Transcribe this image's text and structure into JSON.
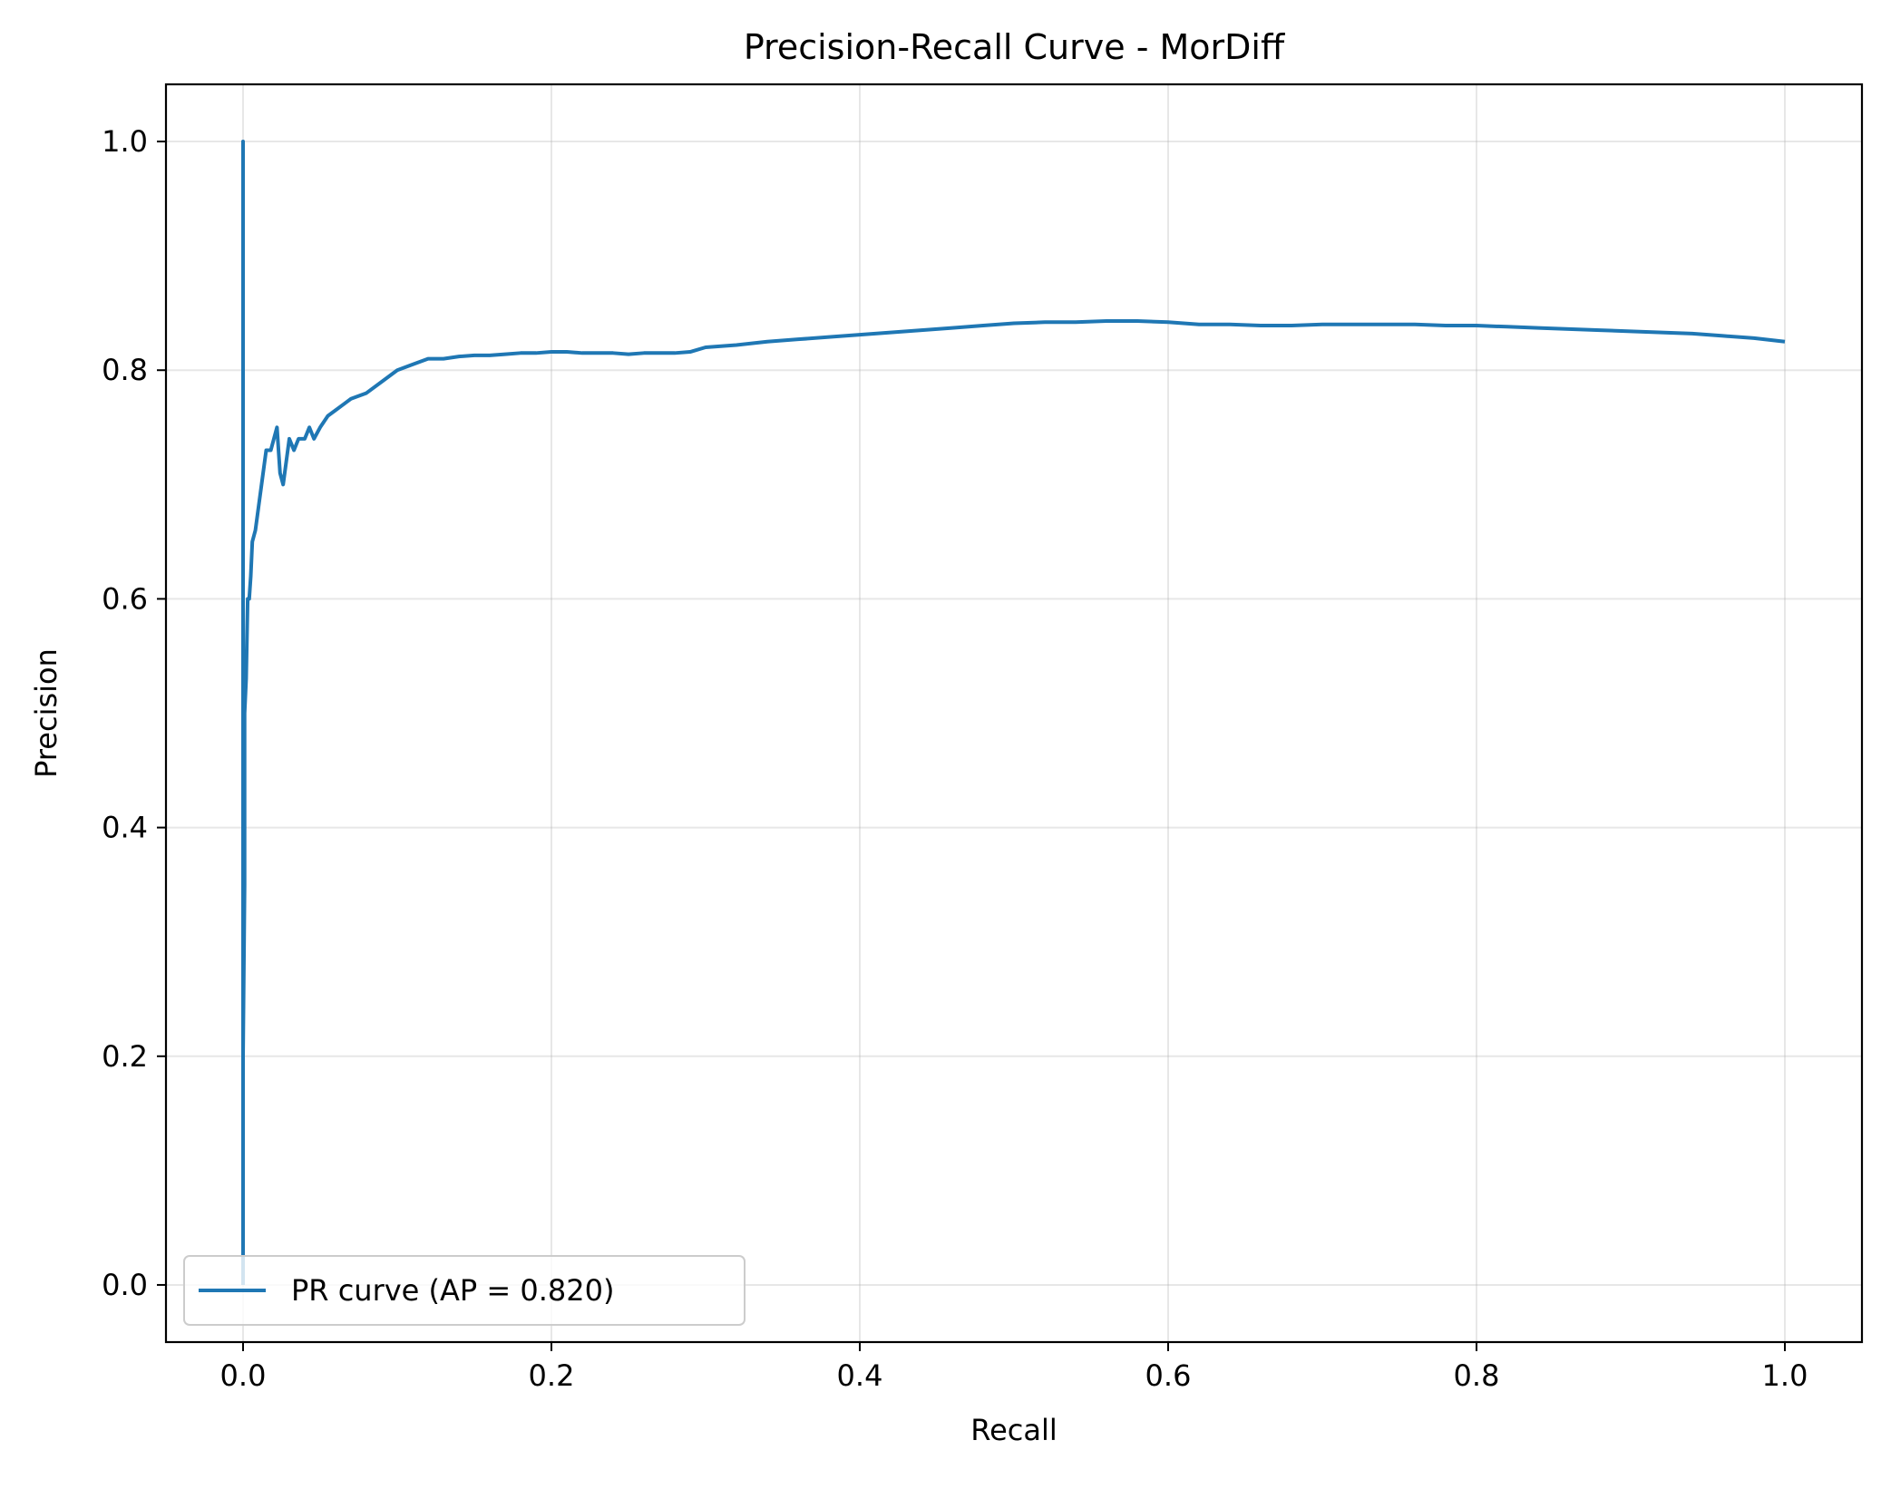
{
  "chart_data": {
    "type": "line",
    "title": "Precision-Recall Curve - MorDiff",
    "xlabel": "Recall",
    "ylabel": "Precision",
    "xlim": [
      -0.05,
      1.05
    ],
    "ylim": [
      -0.05,
      1.05
    ],
    "xticks": [
      0.0,
      0.2,
      0.4,
      0.6,
      0.8,
      1.0
    ],
    "xtick_labels": [
      "0.0",
      "0.2",
      "0.4",
      "0.6",
      "0.8",
      "1.0"
    ],
    "yticks": [
      0.0,
      0.2,
      0.4,
      0.6,
      0.8,
      1.0
    ],
    "ytick_labels": [
      "0.0",
      "0.2",
      "0.4",
      "0.6",
      "0.8",
      "1.0"
    ],
    "grid": true,
    "legend_position": "lower-left",
    "series": [
      {
        "name": "PR curve (AP = 0.820)",
        "color": "#1f77b4",
        "x": [
          0.0,
          0.0,
          0.0,
          0.001,
          0.001,
          0.002,
          0.003,
          0.004,
          0.005,
          0.006,
          0.008,
          0.01,
          0.012,
          0.015,
          0.018,
          0.02,
          0.022,
          0.024,
          0.026,
          0.028,
          0.03,
          0.033,
          0.036,
          0.04,
          0.043,
          0.046,
          0.05,
          0.055,
          0.06,
          0.065,
          0.07,
          0.08,
          0.09,
          0.1,
          0.11,
          0.12,
          0.13,
          0.14,
          0.15,
          0.16,
          0.17,
          0.18,
          0.19,
          0.2,
          0.21,
          0.22,
          0.23,
          0.24,
          0.25,
          0.26,
          0.27,
          0.28,
          0.29,
          0.3,
          0.32,
          0.34,
          0.36,
          0.38,
          0.4,
          0.42,
          0.44,
          0.46,
          0.48,
          0.5,
          0.52,
          0.54,
          0.56,
          0.58,
          0.6,
          0.62,
          0.64,
          0.66,
          0.68,
          0.7,
          0.72,
          0.74,
          0.76,
          0.78,
          0.8,
          0.82,
          0.84,
          0.86,
          0.88,
          0.9,
          0.92,
          0.94,
          0.96,
          0.98,
          1.0
        ],
        "y": [
          0.0,
          1.0,
          0.2,
          0.35,
          0.5,
          0.53,
          0.6,
          0.6,
          0.62,
          0.65,
          0.66,
          0.68,
          0.7,
          0.73,
          0.73,
          0.74,
          0.75,
          0.71,
          0.7,
          0.72,
          0.74,
          0.73,
          0.74,
          0.74,
          0.75,
          0.74,
          0.75,
          0.76,
          0.765,
          0.77,
          0.775,
          0.78,
          0.79,
          0.8,
          0.805,
          0.81,
          0.81,
          0.812,
          0.813,
          0.813,
          0.814,
          0.815,
          0.815,
          0.816,
          0.816,
          0.815,
          0.815,
          0.815,
          0.814,
          0.815,
          0.815,
          0.815,
          0.816,
          0.82,
          0.822,
          0.825,
          0.827,
          0.829,
          0.831,
          0.833,
          0.835,
          0.837,
          0.839,
          0.841,
          0.842,
          0.842,
          0.843,
          0.843,
          0.842,
          0.84,
          0.84,
          0.839,
          0.839,
          0.84,
          0.84,
          0.84,
          0.84,
          0.839,
          0.839,
          0.838,
          0.837,
          0.836,
          0.835,
          0.834,
          0.833,
          0.832,
          0.83,
          0.828,
          0.825
        ]
      }
    ]
  }
}
